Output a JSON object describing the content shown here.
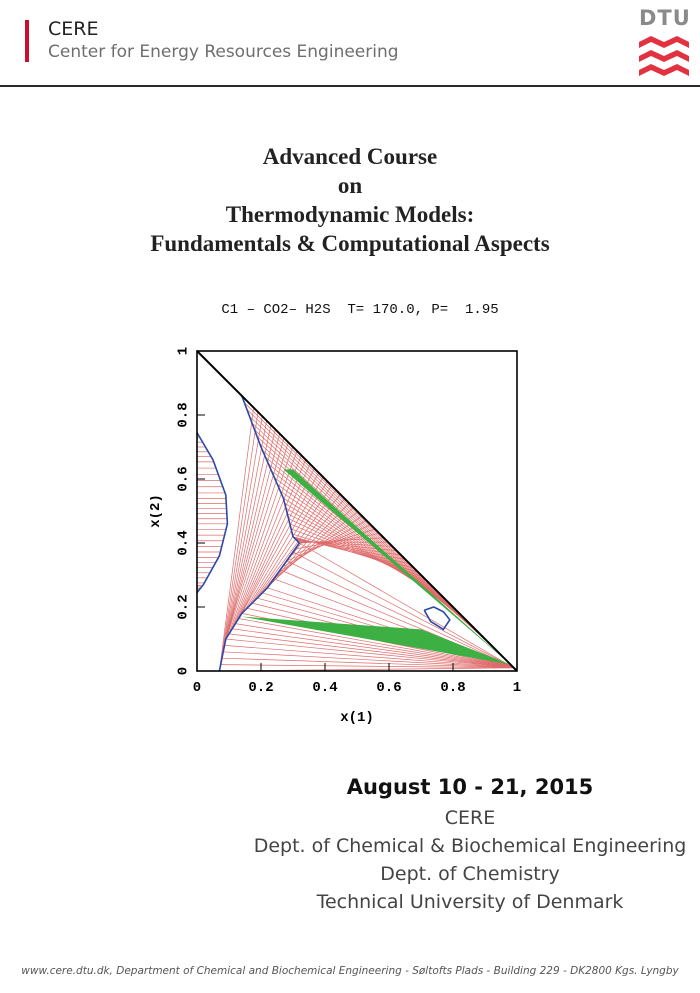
{
  "header": {
    "abbr": "CERE",
    "name": "Center for Energy Resources Engineering",
    "logo_text": "DTU",
    "accent_color": "#c8102e",
    "logo_wave_color": "#e2323f"
  },
  "title": {
    "lines": [
      "Advanced Course",
      "on",
      "Thermodynamic Models:",
      "Fundamentals & Computational Aspects"
    ]
  },
  "chart_data": {
    "type": "phase-diagram",
    "title": "C1 – CO2– H2S  T= 170.0, P=  1.95",
    "xlabel": "x(1)",
    "ylabel": "x(2)",
    "xlim": [
      0,
      1
    ],
    "ylim": [
      0,
      1
    ],
    "xticks": [
      "0",
      "0.2",
      "0.4",
      "0.6",
      "0.8",
      "1"
    ],
    "yticks": [
      "0",
      "0.2",
      "0.4",
      "0.6",
      "0.8",
      "1"
    ],
    "colors": {
      "phase_boundary": "#2a4aa8",
      "tie_lines": "#e06a6a",
      "three_phase": "#3cb043",
      "frame": "#000000"
    },
    "left_region": [
      [
        0,
        0.745
      ],
      [
        0.05,
        0.66
      ],
      [
        0.09,
        0.55
      ],
      [
        0.095,
        0.46
      ],
      [
        0.07,
        0.36
      ],
      [
        0.02,
        0.27
      ],
      [
        0,
        0.245
      ]
    ],
    "big_region_upper": [
      [
        0.14,
        0.86
      ],
      [
        0.2,
        0.7
      ],
      [
        0.27,
        0.54
      ],
      [
        0.3,
        0.42
      ],
      [
        0.32,
        0.4
      ]
    ],
    "big_region_lower": [
      [
        0.32,
        0.4
      ],
      [
        0.22,
        0.26
      ],
      [
        0.14,
        0.18
      ],
      [
        0.09,
        0.1
      ],
      [
        0.07,
        0
      ]
    ],
    "small_loop": [
      [
        0.71,
        0.19
      ],
      [
        0.74,
        0.2
      ],
      [
        0.77,
        0.185
      ],
      [
        0.79,
        0.16
      ],
      [
        0.77,
        0.13
      ],
      [
        0.73,
        0.155
      ],
      [
        0.71,
        0.19
      ]
    ],
    "upper_triangle": [
      [
        0.27,
        0.63
      ],
      [
        0.3,
        0.63
      ],
      [
        0.98,
        0.02
      ]
    ],
    "lower_triangle": [
      [
        0.14,
        0.17
      ],
      [
        0.7,
        0.13
      ],
      [
        0.98,
        0.02
      ]
    ]
  },
  "event": {
    "date": "August 10 - 21, 2015",
    "lines": [
      "CERE",
      "Dept. of Chemical & Biochemical Engineering",
      "Dept. of Chemistry",
      "Technical University of Denmark"
    ]
  },
  "footer": {
    "text": "www.cere.dtu.dk, Department of Chemical and Biochemical Engineering - Søltofts Plads - Building 229 - DK2800 Kgs. Lyngby"
  }
}
